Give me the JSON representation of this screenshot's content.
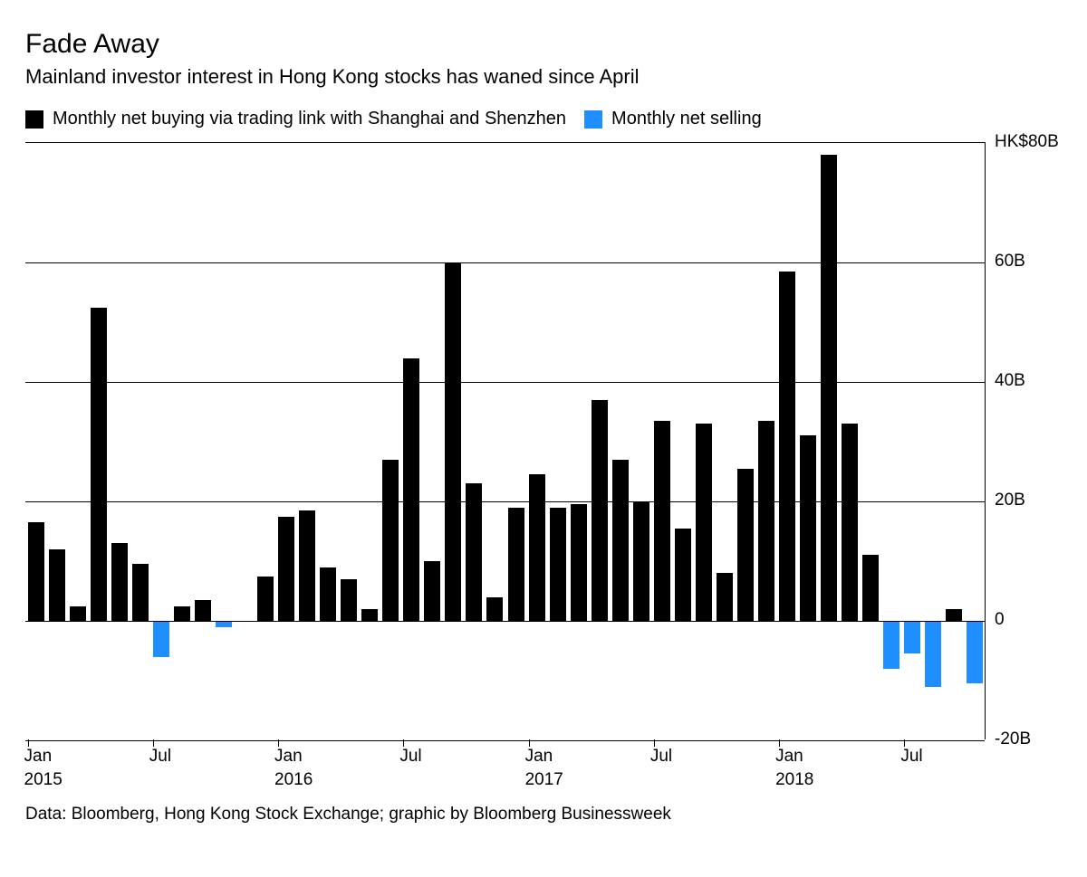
{
  "title": "Fade Away",
  "subtitle": "Mainland investor interest in Hong Kong stocks has waned since April",
  "legend": {
    "series_a": {
      "label": "Monthly net buying via trading link with Shanghai and Shenzhen",
      "color": "#000000"
    },
    "series_b": {
      "label": "Monthly net selling",
      "color": "#1f8fff"
    }
  },
  "chart": {
    "type": "bar",
    "background_color": "#ffffff",
    "grid_color": "#000000",
    "positive_color": "#000000",
    "negative_color": "#1f8fff",
    "bar_width_ratio": 0.78,
    "ylim": [
      -20,
      80
    ],
    "ytick_step": 20,
    "ylabels": {
      "80": "HK$80B",
      "60": "60B",
      "40": "40B",
      "20": "20B",
      "0": "0",
      "-20": "-20B"
    },
    "values": [
      16.5,
      12,
      2.5,
      52.5,
      13,
      9.5,
      -6,
      2.5,
      3.5,
      -1,
      0,
      7.5,
      17.5,
      18.5,
      9,
      7,
      2,
      27,
      44,
      10,
      60,
      23,
      4,
      19,
      24.5,
      19,
      19.5,
      37,
      27,
      20,
      33.5,
      15.5,
      33,
      8,
      25.5,
      33.5,
      58.5,
      31,
      78,
      33,
      11,
      -8,
      -5.5,
      -11,
      2,
      -10.5
    ],
    "x_axis": {
      "start_month_index": 0,
      "ticks": [
        {
          "index": 0,
          "month": "Jan",
          "year": "2015"
        },
        {
          "index": 6,
          "month": "Jul",
          "year": ""
        },
        {
          "index": 12,
          "month": "Jan",
          "year": "2016"
        },
        {
          "index": 18,
          "month": "Jul",
          "year": ""
        },
        {
          "index": 24,
          "month": "Jan",
          "year": "2017"
        },
        {
          "index": 30,
          "month": "Jul",
          "year": ""
        },
        {
          "index": 36,
          "month": "Jan",
          "year": "2018"
        },
        {
          "index": 42,
          "month": "Jul",
          "year": ""
        }
      ]
    }
  },
  "source": "Data: Bloomberg, Hong Kong Stock Exchange; graphic by Bloomberg Businessweek",
  "typography": {
    "title_fontsize": 30,
    "subtitle_fontsize": 22,
    "legend_fontsize": 20,
    "axis_label_fontsize": 19,
    "source_fontsize": 19,
    "font_family": "Helvetica, Arial, sans-serif"
  }
}
